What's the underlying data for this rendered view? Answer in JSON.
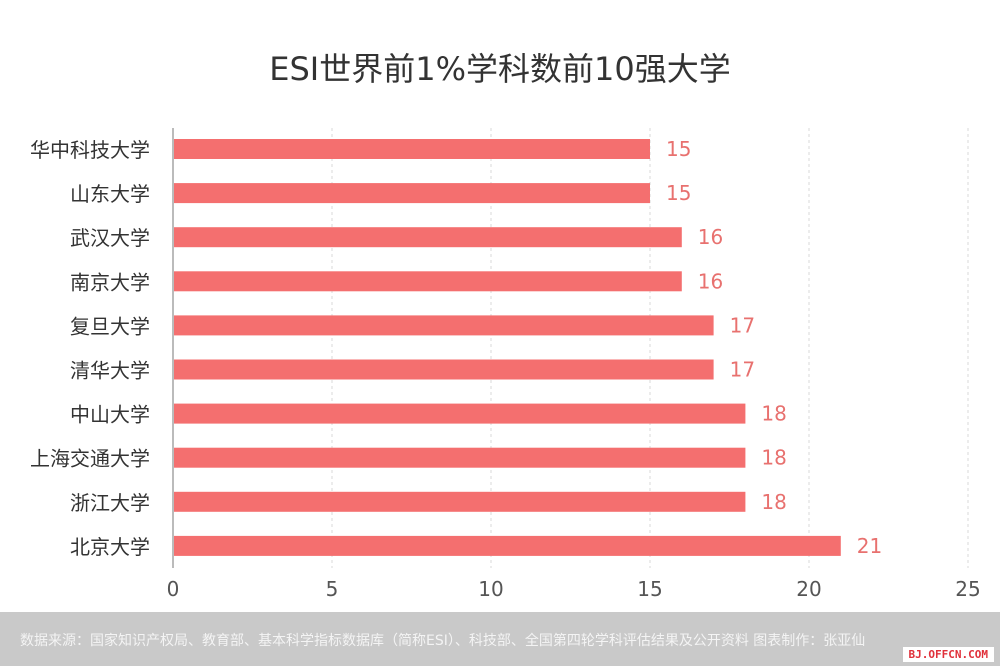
{
  "chart_data": {
    "type": "bar",
    "orientation": "horizontal",
    "title": "ESI世界前1%学科数前10强大学",
    "categories": [
      "华中科技大学",
      "山东大学",
      "武汉大学",
      "南京大学",
      "复旦大学",
      "清华大学",
      "中山大学",
      "上海交通大学",
      "浙江大学",
      "北京大学"
    ],
    "values": [
      15,
      15,
      16,
      16,
      17,
      17,
      18,
      18,
      18,
      21
    ],
    "xlim": [
      0,
      25
    ],
    "xticks": [
      0,
      5,
      10,
      15,
      20,
      25
    ],
    "grid": true,
    "bar_color": "#f46f6f",
    "label_color": "#e8716f",
    "xlabel": "",
    "ylabel": ""
  },
  "footer": {
    "source": "数据来源：国家知识产权局、教育部、基本科学指标数据库（简称ESI）、科技部、全国第四轮学科评估结果及公开资料  图表制作：张亚仙",
    "brand": "BJ.OFFCN.COM"
  }
}
